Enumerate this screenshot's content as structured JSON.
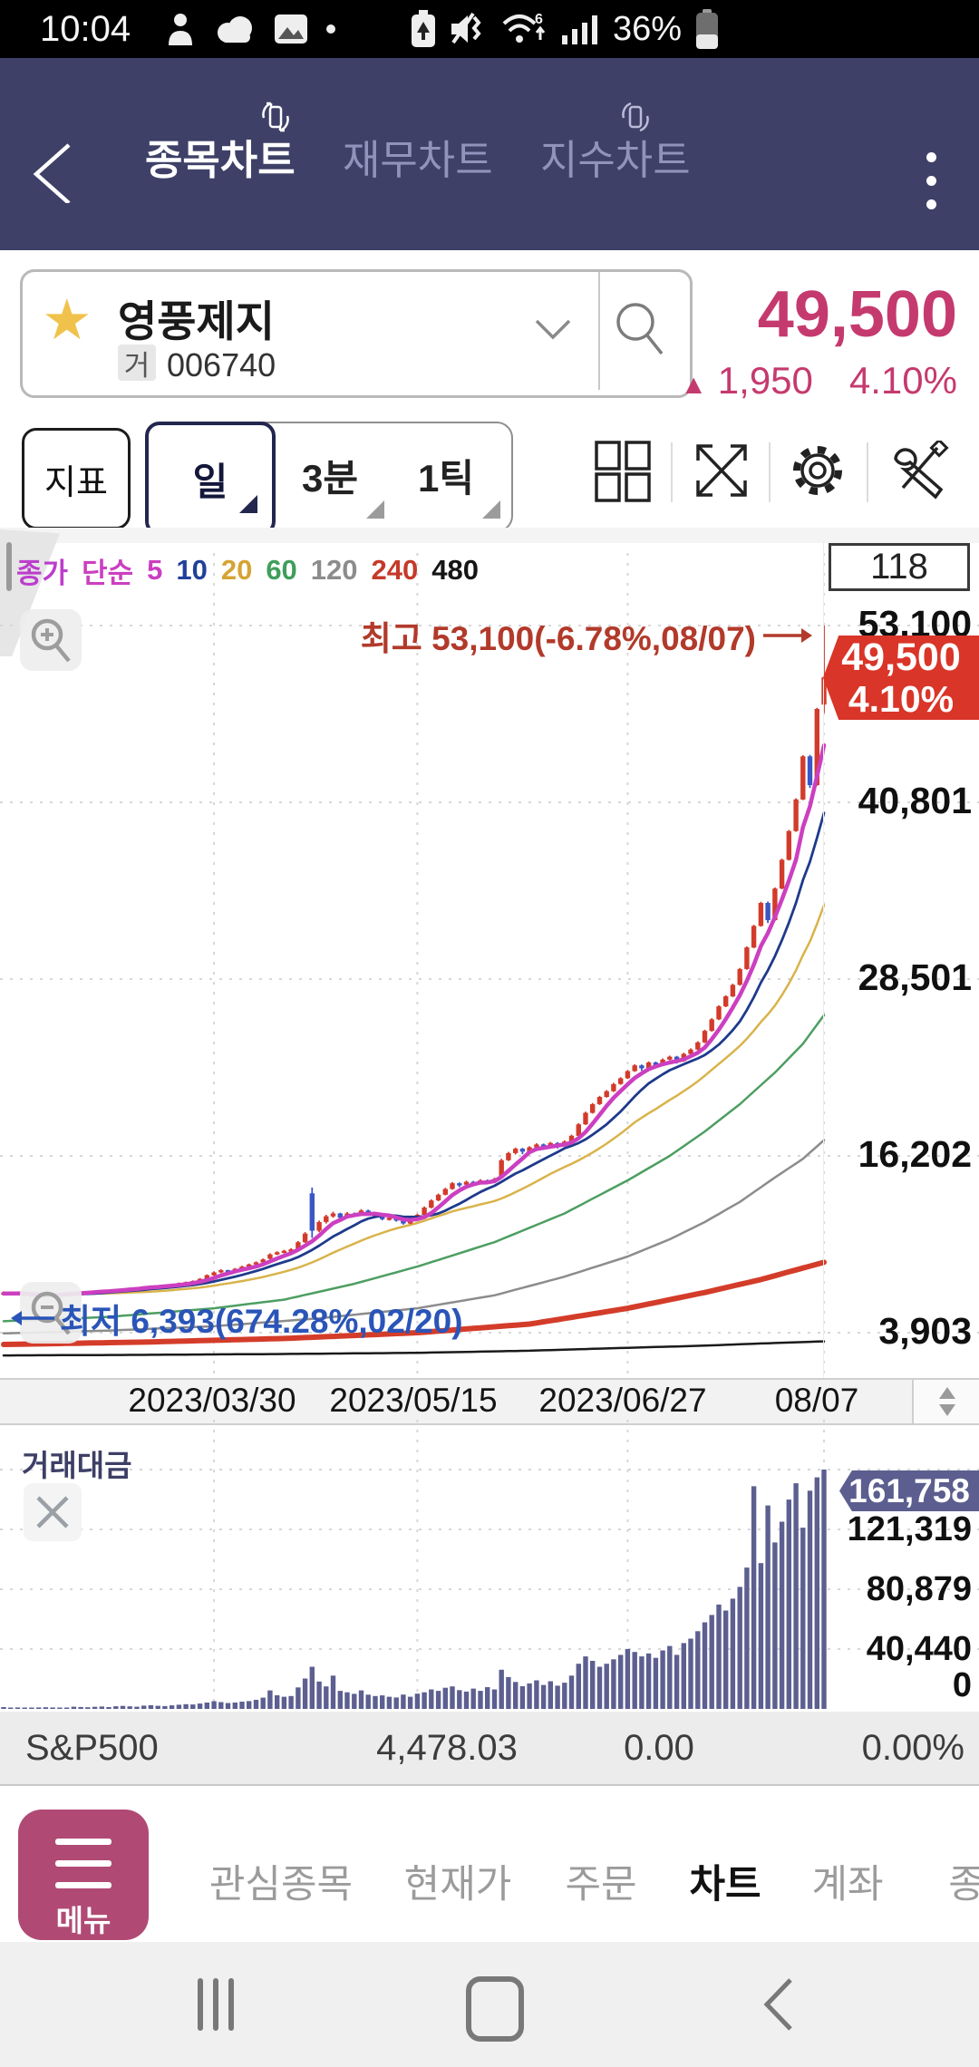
{
  "status_bar": {
    "time": "10:04",
    "battery_pct": "36%"
  },
  "header": {
    "tabs": [
      "종목차트",
      "재무차트",
      "지수차트"
    ],
    "active_tab": "종목차트"
  },
  "stock": {
    "name": "영풍제지",
    "market_badge": "거",
    "code": "006740",
    "price": "49,500",
    "change_arrow": "▲",
    "change": "1,950",
    "change_pct": "4.10%",
    "accent_color": "#c53a6e"
  },
  "toolbar": {
    "indicator": "지표",
    "period_day": "일",
    "period_3min": "3분",
    "period_tick": "1틱"
  },
  "chart": {
    "bar_count": "118",
    "legend_items": [
      {
        "label": "종가",
        "color": "#bb3ecc"
      },
      {
        "label": "단순",
        "color": "#cb3fc0"
      },
      {
        "label": "5",
        "color": "#cb3fc0"
      },
      {
        "label": "10",
        "color": "#21409a"
      },
      {
        "label": "20",
        "color": "#d4a434"
      },
      {
        "label": "60",
        "color": "#3f9e5c"
      },
      {
        "label": "120",
        "color": "#8c8c8c"
      },
      {
        "label": "240",
        "color": "#c43a28"
      },
      {
        "label": "480",
        "color": "#151515"
      }
    ],
    "high_label": "최고 53,100(-6.78%,08/07)",
    "low_label": "최저 6,393(674.28%,02/20)",
    "y_axis": [
      "53,100",
      "40,801",
      "28,501",
      "16,202",
      "3,903"
    ],
    "price_tag": {
      "price": "49,500",
      "pct": "4.10%"
    }
  },
  "x_axis": {
    "dates": [
      "2023/03/30",
      "2023/05/15",
      "2023/06/27",
      "08/07"
    ]
  },
  "volume": {
    "title": "거래대금",
    "tag": "161,758",
    "y_axis": [
      "121,319",
      "80,879",
      "40,440",
      "0"
    ]
  },
  "ticker": {
    "name": "S&P500",
    "value": "4,478.03",
    "change": "0.00",
    "change_pct": "0.00%"
  },
  "bottom_nav": {
    "menu_label": "메뉴",
    "items": [
      "관심종목",
      "현재가",
      "주문",
      "차트",
      "계좌",
      "종"
    ],
    "active_index": 3
  },
  "chart_data": {
    "type": "candlestick+volume",
    "title": "영풍제지 (006740) daily chart",
    "price_axis": {
      "ticks": [
        53100,
        40801,
        28501,
        16202,
        3903
      ],
      "high": {
        "value": 53100,
        "pct": "-6.78%",
        "date": "08/07"
      },
      "low": {
        "value": 6393,
        "pct": "674.28%",
        "date": "02/20"
      },
      "last": {
        "value": 49500,
        "pct": "4.10%"
      }
    },
    "volume_axis": {
      "ticks": [
        161758,
        121319,
        80879,
        40440,
        0
      ],
      "last": 161758
    },
    "x_labels": [
      "2023/03/30",
      "2023/05/15",
      "2023/06/27",
      "08/07"
    ],
    "x_gridline_indices": [
      30,
      59,
      89,
      117
    ],
    "colors": {
      "up": "#d23b2b",
      "down": "#3a57c5",
      "volume": "#5c5f90",
      "grid": "#d7d7d7",
      "ma5": "#cc3fc0",
      "ma10": "#1e3a8c",
      "ma20": "#d9b34a",
      "ma60": "#4d9e62",
      "ma120": "#8c8c8c",
      "ma240": "#d43c2a",
      "ma480": "#1a1a1a"
    },
    "ma_seed": 6600,
    "ma_keylines": {
      "ma60": [
        [
          0,
          4700
        ],
        [
          15,
          5000
        ],
        [
          30,
          5600
        ],
        [
          40,
          6200
        ],
        [
          50,
          7300
        ],
        [
          59,
          8500
        ],
        [
          70,
          10200
        ],
        [
          80,
          12200
        ],
        [
          89,
          14500
        ],
        [
          95,
          16200
        ],
        [
          100,
          17900
        ],
        [
          105,
          19800
        ],
        [
          110,
          22000
        ],
        [
          114,
          24000
        ],
        [
          117,
          26000
        ]
      ],
      "ma120": [
        [
          0,
          3850
        ],
        [
          15,
          4050
        ],
        [
          30,
          4350
        ],
        [
          45,
          4900
        ],
        [
          59,
          5600
        ],
        [
          70,
          6500
        ],
        [
          80,
          7800
        ],
        [
          89,
          9200
        ],
        [
          95,
          10400
        ],
        [
          100,
          11600
        ],
        [
          105,
          13000
        ],
        [
          110,
          14700
        ],
        [
          114,
          16000
        ],
        [
          117,
          17300
        ]
      ],
      "ma240": [
        [
          0,
          3080
        ],
        [
          20,
          3250
        ],
        [
          40,
          3500
        ],
        [
          59,
          3900
        ],
        [
          75,
          4500
        ],
        [
          89,
          5600
        ],
        [
          100,
          6700
        ],
        [
          108,
          7600
        ],
        [
          117,
          8800
        ]
      ],
      "ma480": [
        [
          0,
          2320
        ],
        [
          20,
          2360
        ],
        [
          40,
          2420
        ],
        [
          59,
          2500
        ],
        [
          75,
          2650
        ],
        [
          89,
          2850
        ],
        [
          100,
          3000
        ],
        [
          108,
          3150
        ],
        [
          117,
          3300
        ]
      ]
    },
    "candles": [
      [
        6650,
        6780,
        6600,
        6700
      ],
      [
        6700,
        6720,
        6600,
        6650
      ],
      [
        6650,
        6680,
        6550,
        6600
      ],
      [
        6600,
        6620,
        6500,
        6550
      ],
      [
        6550,
        6580,
        6450,
        6500
      ],
      [
        6500,
        6520,
        6393,
        6450
      ],
      [
        6450,
        6560,
        6420,
        6520
      ],
      [
        6520,
        6620,
        6480,
        6580
      ],
      [
        6580,
        6660,
        6540,
        6620
      ],
      [
        6620,
        6700,
        6580,
        6660
      ],
      [
        6660,
        6740,
        6620,
        6700
      ],
      [
        6700,
        6730,
        6630,
        6680
      ],
      [
        6680,
        6780,
        6650,
        6740
      ],
      [
        6740,
        6840,
        6700,
        6800
      ],
      [
        6800,
        6890,
        6760,
        6850
      ],
      [
        6850,
        6870,
        6770,
        6820
      ],
      [
        6820,
        6940,
        6790,
        6900
      ],
      [
        6900,
        6990,
        6860,
        6950
      ],
      [
        6950,
        7040,
        6910,
        7000
      ],
      [
        7000,
        7090,
        6960,
        7050
      ],
      [
        7050,
        7140,
        7010,
        7100
      ],
      [
        7100,
        7190,
        7060,
        7150
      ],
      [
        7150,
        7170,
        7060,
        7120
      ],
      [
        7120,
        7240,
        7080,
        7200
      ],
      [
        7200,
        7320,
        7160,
        7280
      ],
      [
        7280,
        7390,
        7240,
        7350
      ],
      [
        7350,
        7460,
        7310,
        7420
      ],
      [
        7420,
        7540,
        7380,
        7500
      ],
      [
        7500,
        7700,
        7460,
        7650
      ],
      [
        7650,
        7960,
        7610,
        7900
      ],
      [
        7900,
        8160,
        7860,
        8100
      ],
      [
        8100,
        8310,
        8050,
        8250
      ],
      [
        8250,
        8280,
        8120,
        8200
      ],
      [
        8200,
        8400,
        8150,
        8350
      ],
      [
        8350,
        8560,
        8300,
        8500
      ],
      [
        8500,
        8710,
        8450,
        8650
      ],
      [
        8650,
        8860,
        8600,
        8800
      ],
      [
        8800,
        9060,
        8750,
        9000
      ],
      [
        9050,
        9420,
        9000,
        9350
      ],
      [
        9350,
        9570,
        9300,
        9500
      ],
      [
        9500,
        9670,
        9420,
        9600
      ],
      [
        9600,
        9780,
        9520,
        9700
      ],
      [
        9700,
        10280,
        9650,
        10200
      ],
      [
        10200,
        10900,
        10150,
        10800
      ],
      [
        13600,
        14000,
        10500,
        11000
      ],
      [
        11000,
        11700,
        10900,
        11600
      ],
      [
        11600,
        12100,
        11500,
        12000
      ],
      [
        12000,
        12320,
        11900,
        12200
      ],
      [
        12200,
        12250,
        11800,
        11900
      ],
      [
        11900,
        12300,
        11850,
        12200
      ],
      [
        12200,
        12260,
        12000,
        12100
      ],
      [
        12100,
        12500,
        12050,
        12400
      ],
      [
        12400,
        12460,
        12120,
        12200
      ],
      [
        12200,
        12260,
        11920,
        12000
      ],
      [
        12000,
        12060,
        11720,
        11800
      ],
      [
        11800,
        11980,
        11700,
        11900
      ],
      [
        11900,
        11960,
        11620,
        11700
      ],
      [
        11700,
        11760,
        11420,
        11500
      ],
      [
        11500,
        11880,
        11450,
        11800
      ],
      [
        11800,
        12180,
        11750,
        12100
      ],
      [
        12100,
        12680,
        12050,
        12600
      ],
      [
        12600,
        13180,
        12550,
        13100
      ],
      [
        13100,
        13580,
        13050,
        13500
      ],
      [
        13500,
        13980,
        13450,
        13900
      ],
      [
        13900,
        14380,
        13850,
        14300
      ],
      [
        14300,
        14360,
        14020,
        14200
      ],
      [
        14200,
        14480,
        14150,
        14400
      ],
      [
        14400,
        14460,
        14120,
        14300
      ],
      [
        14300,
        14580,
        14250,
        14500
      ],
      [
        14500,
        14560,
        14220,
        14400
      ],
      [
        14400,
        14680,
        14350,
        14600
      ],
      [
        14700,
        16000,
        14650,
        15900
      ],
      [
        15900,
        16480,
        15850,
        16400
      ],
      [
        16400,
        16780,
        16300,
        16700
      ],
      [
        16700,
        16760,
        16320,
        16500
      ],
      [
        16500,
        16880,
        16450,
        16800
      ],
      [
        16800,
        17080,
        16700,
        17000
      ],
      [
        17000,
        17060,
        16620,
        16800
      ],
      [
        16800,
        17180,
        16750,
        17100
      ],
      [
        17100,
        17160,
        16720,
        16900
      ],
      [
        16900,
        17280,
        16850,
        17200
      ],
      [
        17200,
        17680,
        17150,
        17600
      ],
      [
        17600,
        18480,
        17550,
        18400
      ],
      [
        18400,
        19280,
        18350,
        19200
      ],
      [
        19200,
        19880,
        19150,
        19800
      ],
      [
        19800,
        20380,
        19750,
        20300
      ],
      [
        20300,
        20780,
        20250,
        20700
      ],
      [
        20700,
        21280,
        20650,
        21200
      ],
      [
        21200,
        21680,
        21150,
        21600
      ],
      [
        21600,
        22180,
        21550,
        22100
      ],
      [
        22100,
        22580,
        22050,
        22500
      ],
      [
        22500,
        22560,
        22120,
        22300
      ],
      [
        22300,
        22780,
        22250,
        22700
      ],
      [
        22700,
        22760,
        22320,
        22500
      ],
      [
        22500,
        22980,
        22450,
        22900
      ],
      [
        22900,
        23180,
        22850,
        23100
      ],
      [
        23100,
        23160,
        22620,
        22800
      ],
      [
        22800,
        23380,
        22750,
        23300
      ],
      [
        23300,
        23680,
        23250,
        23600
      ],
      [
        23600,
        24180,
        23550,
        24100
      ],
      [
        24100,
        24980,
        24050,
        24900
      ],
      [
        24900,
        25780,
        24850,
        25700
      ],
      [
        25700,
        26680,
        25650,
        26600
      ],
      [
        26600,
        27380,
        26550,
        27300
      ],
      [
        27300,
        28180,
        27250,
        28100
      ],
      [
        28100,
        29280,
        28050,
        29200
      ],
      [
        29200,
        30780,
        29150,
        30700
      ],
      [
        30700,
        32280,
        30650,
        32200
      ],
      [
        32200,
        33880,
        32150,
        33800
      ],
      [
        33800,
        33900,
        32400,
        32600
      ],
      [
        32600,
        34880,
        32550,
        34800
      ],
      [
        34800,
        36880,
        34750,
        36800
      ],
      [
        36800,
        38880,
        36750,
        38800
      ],
      [
        38800,
        41080,
        38750,
        41000
      ],
      [
        41000,
        44080,
        40950,
        44000
      ],
      [
        44000,
        44100,
        41800,
        42000
      ],
      [
        42000,
        47380,
        41950,
        47300
      ],
      [
        47600,
        53100,
        47000,
        49500
      ]
    ],
    "volumes": [
      1200,
      900,
      1000,
      800,
      700,
      950,
      1100,
      1000,
      850,
      900,
      1500,
      1300,
      1100,
      1400,
      1600,
      1200,
      1800,
      2000,
      1700,
      1500,
      2200,
      2500,
      2100,
      1900,
      2400,
      2800,
      3200,
      3000,
      3600,
      4300,
      5200,
      4600,
      4000,
      4300,
      4900,
      5300,
      6100,
      7600,
      12500,
      9200,
      8200,
      8700,
      14500,
      20500,
      28500,
      18500,
      15200,
      22500,
      12200,
      11200,
      10200,
      12500,
      9600,
      8700,
      9100,
      8200,
      7700,
      9700,
      8200,
      10300,
      11200,
      13200,
      12200,
      14300,
      15200,
      12700,
      11700,
      13700,
      12200,
      14700,
      13200,
      26500,
      21500,
      18200,
      15300,
      17200,
      19300,
      16200,
      18700,
      15700,
      17700,
      22500,
      30500,
      35500,
      32500,
      28500,
      30500,
      33500,
      36500,
      40500,
      38500,
      35500,
      37500,
      34500,
      39500,
      42500,
      36500,
      44500,
      47500,
      52500,
      58500,
      63500,
      70500,
      66500,
      74500,
      82500,
      95500,
      150500,
      98500,
      137500,
      112500,
      126500,
      141500,
      152500,
      122500,
      147500,
      156500,
      161758
    ]
  }
}
